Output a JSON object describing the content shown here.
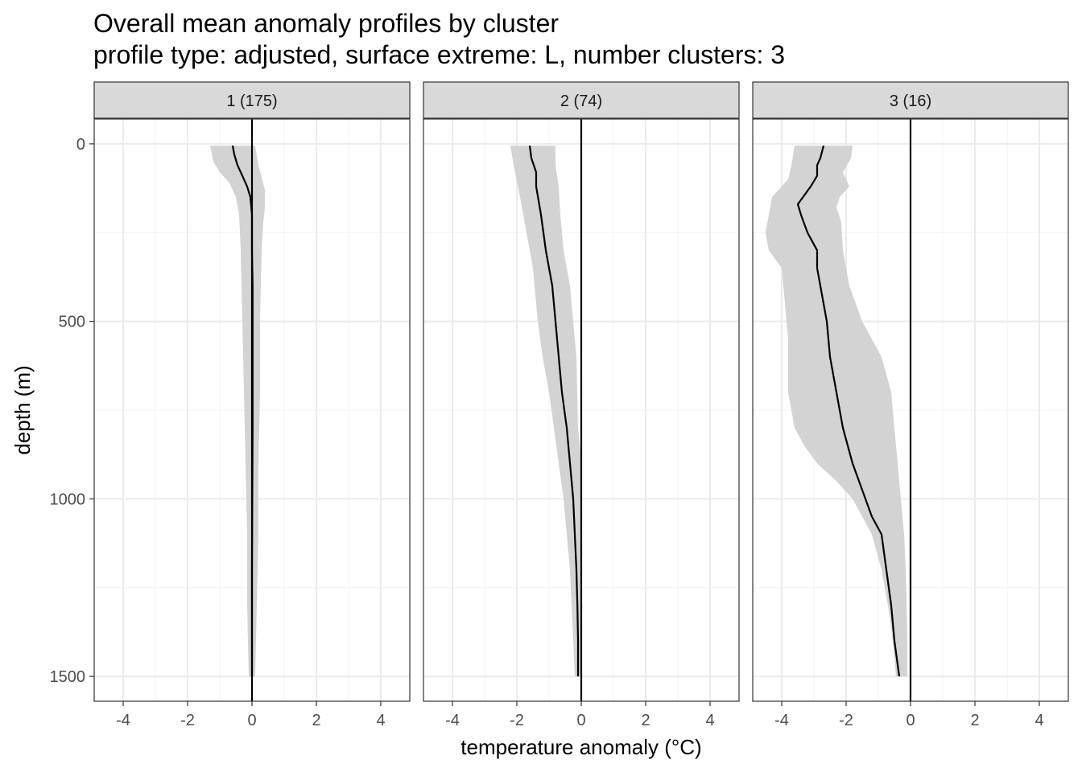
{
  "chart_data": {
    "type": "line",
    "title": "Overall mean anomaly profiles by cluster",
    "subtitle": "profile type: adjusted, surface extreme: L, number clusters: 3",
    "xlabel": "temperature anomaly (°C)",
    "ylabel": "depth (m)",
    "xlim": [
      -4.9,
      4.9
    ],
    "ylim": [
      -70,
      1570
    ],
    "y_reversed": true,
    "x_ticks": [
      -4,
      -2,
      0,
      2,
      4
    ],
    "x_tick_labels": [
      "-4",
      "-2",
      "0",
      "2",
      "4"
    ],
    "y_ticks": [
      0,
      500,
      1000,
      1500
    ],
    "y_tick_labels": [
      "0",
      "500",
      "1000",
      "1500"
    ],
    "vline_x": 0,
    "grid": true,
    "panels": [
      {
        "label": "1 (175)",
        "series": {
          "mean": [
            [
              -0.6,
              5
            ],
            [
              -0.55,
              30
            ],
            [
              -0.45,
              60
            ],
            [
              -0.3,
              90
            ],
            [
              -0.15,
              120
            ],
            [
              -0.05,
              150
            ],
            [
              0,
              200
            ],
            [
              0,
              300
            ],
            [
              0.02,
              400
            ],
            [
              0.02,
              600
            ],
            [
              0.02,
              800
            ],
            [
              0.01,
              1000
            ],
            [
              0,
              1200
            ],
            [
              0,
              1400
            ],
            [
              0,
              1500
            ]
          ],
          "band_lower": [
            [
              -1.3,
              5
            ],
            [
              -1.2,
              50
            ],
            [
              -1.0,
              80
            ],
            [
              -0.7,
              110
            ],
            [
              -0.5,
              150
            ],
            [
              -0.4,
              200
            ],
            [
              -0.35,
              300
            ],
            [
              -0.3,
              500
            ],
            [
              -0.25,
              700
            ],
            [
              -0.2,
              900
            ],
            [
              -0.15,
              1100
            ],
            [
              -0.15,
              1300
            ],
            [
              -0.1,
              1500
            ]
          ],
          "band_upper": [
            [
              0.1,
              5
            ],
            [
              0.2,
              60
            ],
            [
              0.4,
              130
            ],
            [
              0.4,
              180
            ],
            [
              0.35,
              220
            ],
            [
              0.3,
              300
            ],
            [
              0.25,
              500
            ],
            [
              0.25,
              700
            ],
            [
              0.2,
              900
            ],
            [
              0.2,
              1100
            ],
            [
              0.15,
              1300
            ],
            [
              0.1,
              1500
            ]
          ]
        }
      },
      {
        "label": "2 (74)",
        "series": {
          "mean": [
            [
              -1.6,
              5
            ],
            [
              -1.55,
              40
            ],
            [
              -1.4,
              80
            ],
            [
              -1.4,
              120
            ],
            [
              -1.25,
              200
            ],
            [
              -1.1,
              300
            ],
            [
              -0.9,
              400
            ],
            [
              -0.8,
              500
            ],
            [
              -0.7,
              600
            ],
            [
              -0.6,
              700
            ],
            [
              -0.45,
              800
            ],
            [
              -0.35,
              900
            ],
            [
              -0.25,
              1000
            ],
            [
              -0.2,
              1100
            ],
            [
              -0.15,
              1200
            ],
            [
              -0.12,
              1300
            ],
            [
              -0.1,
              1400
            ],
            [
              -0.1,
              1500
            ]
          ],
          "band_lower": [
            [
              -2.2,
              5
            ],
            [
              -2.1,
              60
            ],
            [
              -1.9,
              150
            ],
            [
              -1.7,
              250
            ],
            [
              -1.5,
              350
            ],
            [
              -1.35,
              500
            ],
            [
              -1.2,
              600
            ],
            [
              -1.0,
              700
            ],
            [
              -0.85,
              800
            ],
            [
              -0.7,
              900
            ],
            [
              -0.55,
              1000
            ],
            [
              -0.45,
              1100
            ],
            [
              -0.35,
              1200
            ],
            [
              -0.3,
              1300
            ],
            [
              -0.25,
              1400
            ],
            [
              -0.2,
              1500
            ]
          ],
          "band_upper": [
            [
              -0.8,
              5
            ],
            [
              -0.8,
              60
            ],
            [
              -0.7,
              120
            ],
            [
              -0.65,
              200
            ],
            [
              -0.55,
              300
            ],
            [
              -0.35,
              400
            ],
            [
              -0.25,
              500
            ],
            [
              -0.15,
              600
            ],
            [
              -0.1,
              800
            ],
            [
              0,
              900
            ],
            [
              0,
              1100
            ],
            [
              0,
              1300
            ],
            [
              0,
              1500
            ]
          ]
        }
      },
      {
        "label": "3 (16)",
        "series": {
          "mean": [
            [
              -2.7,
              5
            ],
            [
              -2.8,
              40
            ],
            [
              -2.9,
              60
            ],
            [
              -2.9,
              90
            ],
            [
              -3.1,
              120
            ],
            [
              -3.5,
              170
            ],
            [
              -3.4,
              200
            ],
            [
              -3.2,
              250
            ],
            [
              -2.9,
              300
            ],
            [
              -2.9,
              350
            ],
            [
              -2.8,
              400
            ],
            [
              -2.7,
              450
            ],
            [
              -2.6,
              500
            ],
            [
              -2.5,
              600
            ],
            [
              -2.3,
              700
            ],
            [
              -2.1,
              800
            ],
            [
              -1.8,
              900
            ],
            [
              -1.4,
              1000
            ],
            [
              -1.2,
              1050
            ],
            [
              -0.9,
              1100
            ],
            [
              -0.75,
              1200
            ],
            [
              -0.6,
              1300
            ],
            [
              -0.5,
              1400
            ],
            [
              -0.35,
              1500
            ]
          ],
          "band_lower": [
            [
              -3.6,
              5
            ],
            [
              -3.7,
              60
            ],
            [
              -3.8,
              100
            ],
            [
              -4.3,
              150
            ],
            [
              -4.5,
              250
            ],
            [
              -4.4,
              300
            ],
            [
              -4.0,
              350
            ],
            [
              -3.9,
              450
            ],
            [
              -3.8,
              550
            ],
            [
              -3.8,
              700
            ],
            [
              -3.6,
              800
            ],
            [
              -3.3,
              850
            ],
            [
              -2.9,
              900
            ],
            [
              -2.3,
              950
            ],
            [
              -1.8,
              1000
            ],
            [
              -1.5,
              1050
            ],
            [
              -1.2,
              1100
            ],
            [
              -0.9,
              1200
            ],
            [
              -0.7,
              1300
            ],
            [
              -0.55,
              1400
            ],
            [
              -0.45,
              1500
            ]
          ],
          "band_upper": [
            [
              -1.8,
              5
            ],
            [
              -1.85,
              40
            ],
            [
              -2.1,
              80
            ],
            [
              -1.9,
              120
            ],
            [
              -2.2,
              150
            ],
            [
              -2.3,
              180
            ],
            [
              -2.15,
              220
            ],
            [
              -2.1,
              300
            ],
            [
              -1.9,
              400
            ],
            [
              -1.5,
              500
            ],
            [
              -0.9,
              600
            ],
            [
              -0.6,
              700
            ],
            [
              -0.5,
              800
            ],
            [
              -0.4,
              900
            ],
            [
              -0.3,
              1000
            ],
            [
              -0.2,
              1100
            ],
            [
              -0.15,
              1200
            ],
            [
              -0.12,
              1300
            ],
            [
              -0.1,
              1400
            ],
            [
              -0.1,
              1500
            ]
          ]
        }
      }
    ]
  },
  "colors": {
    "band": "#d3d3d3",
    "line": "#000000",
    "strip_fill": "#d9d9d9",
    "strip_border": "#333333",
    "grid_major": "#ebebeb",
    "grid_minor": "#f5f5f5",
    "panel_border": "#333333"
  }
}
